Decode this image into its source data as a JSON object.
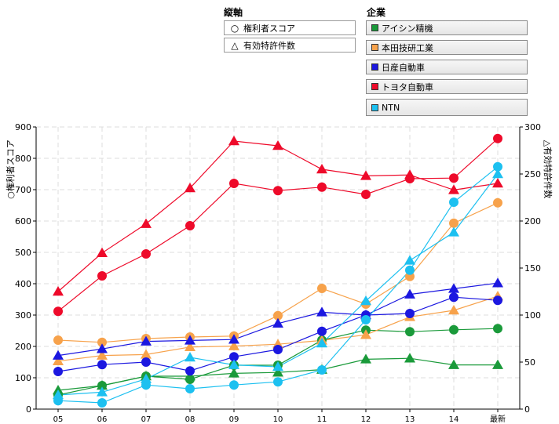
{
  "controls": {
    "axis_title": "縦軸",
    "axis_items": [
      {
        "marker": "○",
        "label": "権利者スコア"
      },
      {
        "marker": "△",
        "label": "有効特許件数"
      }
    ],
    "company_title": "企業",
    "company_items": [
      {
        "label": "アイシン精機",
        "color": "#1a9a3a"
      },
      {
        "label": "本田技研工業",
        "color": "#f7a24b"
      },
      {
        "label": "日産自動車",
        "color": "#1b17e0"
      },
      {
        "label": "トヨタ自動車",
        "color": "#ee0a2a"
      },
      {
        "label": "NTN",
        "color": "#1cc0f0"
      }
    ]
  },
  "chart_data": {
    "type": "line",
    "categories": [
      "05",
      "06",
      "07",
      "08",
      "09",
      "10",
      "11",
      "12",
      "13",
      "14",
      "最新"
    ],
    "left_axis": {
      "label": "○権利者スコア",
      "ylim": [
        0,
        900
      ],
      "ticks": [
        0,
        100,
        200,
        300,
        400,
        500,
        600,
        700,
        800,
        900
      ]
    },
    "right_axis": {
      "label": "△有効特許件数",
      "ylim": [
        0,
        300
      ],
      "ticks": [
        0,
        50,
        100,
        150,
        200,
        250,
        300
      ]
    },
    "grid": true,
    "series": [
      {
        "name": "アイシン精機",
        "axis": "left",
        "marker": "circle",
        "color": "#1a9a3a",
        "values": [
          45,
          75,
          105,
          95,
          140,
          140,
          220,
          252,
          247,
          253,
          257
        ]
      },
      {
        "name": "アイシン精機",
        "axis": "right",
        "marker": "triangle",
        "color": "#1a9a3a",
        "values": [
          20,
          25,
          35,
          35,
          38,
          39,
          42,
          53,
          54,
          47,
          47
        ]
      },
      {
        "name": "本田技研工業",
        "axis": "left",
        "marker": "circle",
        "color": "#f7a24b",
        "values": [
          220,
          213,
          225,
          230,
          233,
          298,
          385,
          335,
          423,
          593,
          658
        ]
      },
      {
        "name": "本田技研工業",
        "axis": "right",
        "marker": "triangle",
        "color": "#f7a24b",
        "values": [
          51,
          57,
          58,
          66,
          67,
          69,
          73,
          79,
          98,
          105,
          120
        ]
      },
      {
        "name": "日産自動車",
        "axis": "left",
        "marker": "circle",
        "color": "#1b17e0",
        "values": [
          120,
          142,
          150,
          122,
          167,
          190,
          248,
          300,
          305,
          357,
          347
        ]
      },
      {
        "name": "日産自動車",
        "axis": "right",
        "marker": "triangle",
        "color": "#1b17e0",
        "values": [
          57,
          64,
          72,
          73,
          74,
          91,
          103,
          100,
          122,
          128,
          134
        ]
      },
      {
        "name": "トヨタ自動車",
        "axis": "left",
        "marker": "circle",
        "color": "#ee0a2a",
        "values": [
          312,
          425,
          495,
          585,
          720,
          697,
          708,
          685,
          735,
          737,
          863
        ]
      },
      {
        "name": "トヨタ自動車",
        "axis": "right",
        "marker": "triangle",
        "color": "#ee0a2a",
        "values": [
          125,
          166,
          197,
          235,
          285,
          280,
          255,
          248,
          249,
          233,
          240
        ]
      },
      {
        "name": "NTN",
        "axis": "left",
        "marker": "circle",
        "color": "#1cc0f0",
        "values": [
          27,
          20,
          77,
          65,
          77,
          87,
          125,
          285,
          443,
          660,
          773
        ]
      },
      {
        "name": "NTN",
        "axis": "right",
        "marker": "triangle",
        "color": "#1cc0f0",
        "values": [
          15,
          18,
          32,
          55,
          47,
          45,
          70,
          115,
          158,
          188,
          250
        ]
      }
    ]
  }
}
